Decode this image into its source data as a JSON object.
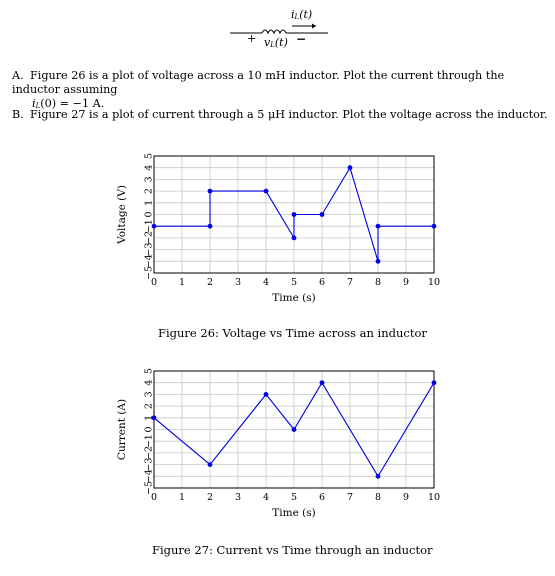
{
  "circuit": {
    "current_label_base": "i",
    "current_label_sub": "L",
    "current_label_arg": "(t)",
    "voltage_label_base": "v",
    "voltage_label_sub": "L",
    "voltage_label_arg": "(t)",
    "plus": "+",
    "minus": "−"
  },
  "problems": {
    "a": {
      "label": "A.",
      "text_line1": "Figure 26 is a plot of voltage across a 10 mH inductor. Plot the current through the inductor assuming",
      "text_line2": "i",
      "text_line2_sub": "L",
      "text_line2_rest": "(0) = −1 A."
    },
    "b": {
      "label": "B.",
      "text": "Figure 27 is a plot of current through a 5 μH inductor. Plot the voltage across the inductor."
    }
  },
  "chart_data": [
    {
      "type": "line",
      "title": "",
      "caption": "Figure 26: Voltage vs Time across an inductor",
      "xlabel": "Time (s)",
      "ylabel": "Voltage (V)",
      "xlim": [
        0,
        10
      ],
      "ylim": [
        -5,
        5
      ],
      "xticks": [
        "0",
        "1",
        "2",
        "3",
        "4",
        "5",
        "6",
        "7",
        "8",
        "9",
        "10"
      ],
      "yticks": [
        "5",
        "4",
        "3",
        "2",
        "1",
        "0",
        "−1",
        "−2",
        "−3",
        "−4",
        "−5"
      ],
      "grid": true,
      "color": "#0000e6",
      "series": [
        {
          "x": [
            0,
            2,
            2,
            4,
            5,
            5,
            6,
            7,
            8,
            8,
            10
          ],
          "y": [
            -1,
            -1,
            2,
            2,
            -2,
            0,
            0,
            4,
            -4,
            -1,
            -1
          ]
        }
      ]
    },
    {
      "type": "line",
      "title": "",
      "caption": "Figure 27: Current vs Time through an inductor",
      "xlabel": "Time (s)",
      "ylabel": "Current (A)",
      "xlim": [
        0,
        10
      ],
      "ylim": [
        -5,
        5
      ],
      "xticks": [
        "0",
        "1",
        "2",
        "3",
        "4",
        "5",
        "6",
        "7",
        "8",
        "9",
        "10"
      ],
      "yticks": [
        "5",
        "4",
        "3",
        "2",
        "1",
        "0",
        "−1",
        "−2",
        "−3",
        "−4",
        "−5"
      ],
      "grid": true,
      "color": "#0000e6",
      "series": [
        {
          "x": [
            0,
            2,
            4,
            5,
            6,
            8,
            10
          ],
          "y": [
            1,
            -3,
            3,
            0,
            4,
            -4,
            4
          ]
        }
      ]
    }
  ]
}
